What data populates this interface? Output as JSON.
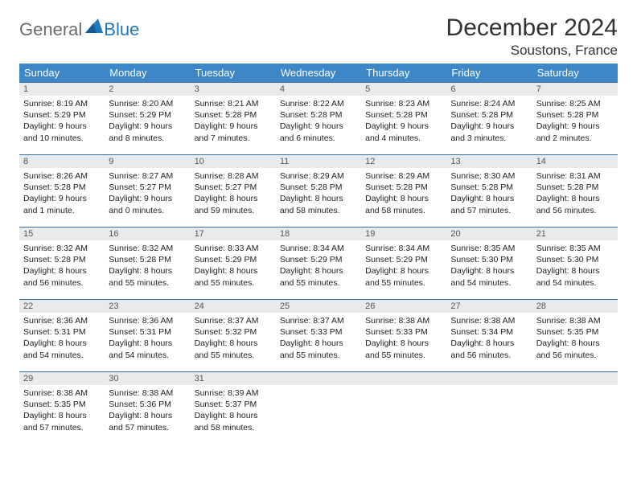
{
  "brand": {
    "word1": "General",
    "word2": "Blue"
  },
  "title": "December 2024",
  "location": "Soustons, France",
  "colors": {
    "header_bg": "#3d87c8",
    "header_text": "#ffffff",
    "row_border": "#3d6f9e",
    "daynum_bg": "#e9eaeb",
    "logo_gray": "#6b6b6b",
    "logo_blue": "#2178bd"
  },
  "weekdays": [
    "Sunday",
    "Monday",
    "Tuesday",
    "Wednesday",
    "Thursday",
    "Friday",
    "Saturday"
  ],
  "weeks": [
    [
      {
        "n": 1,
        "sr": "8:19 AM",
        "ss": "5:29 PM",
        "dl": "9 hours and 10 minutes."
      },
      {
        "n": 2,
        "sr": "8:20 AM",
        "ss": "5:29 PM",
        "dl": "9 hours and 8 minutes."
      },
      {
        "n": 3,
        "sr": "8:21 AM",
        "ss": "5:28 PM",
        "dl": "9 hours and 7 minutes."
      },
      {
        "n": 4,
        "sr": "8:22 AM",
        "ss": "5:28 PM",
        "dl": "9 hours and 6 minutes."
      },
      {
        "n": 5,
        "sr": "8:23 AM",
        "ss": "5:28 PM",
        "dl": "9 hours and 4 minutes."
      },
      {
        "n": 6,
        "sr": "8:24 AM",
        "ss": "5:28 PM",
        "dl": "9 hours and 3 minutes."
      },
      {
        "n": 7,
        "sr": "8:25 AM",
        "ss": "5:28 PM",
        "dl": "9 hours and 2 minutes."
      }
    ],
    [
      {
        "n": 8,
        "sr": "8:26 AM",
        "ss": "5:28 PM",
        "dl": "9 hours and 1 minute."
      },
      {
        "n": 9,
        "sr": "8:27 AM",
        "ss": "5:27 PM",
        "dl": "9 hours and 0 minutes."
      },
      {
        "n": 10,
        "sr": "8:28 AM",
        "ss": "5:27 PM",
        "dl": "8 hours and 59 minutes."
      },
      {
        "n": 11,
        "sr": "8:29 AM",
        "ss": "5:28 PM",
        "dl": "8 hours and 58 minutes."
      },
      {
        "n": 12,
        "sr": "8:29 AM",
        "ss": "5:28 PM",
        "dl": "8 hours and 58 minutes."
      },
      {
        "n": 13,
        "sr": "8:30 AM",
        "ss": "5:28 PM",
        "dl": "8 hours and 57 minutes."
      },
      {
        "n": 14,
        "sr": "8:31 AM",
        "ss": "5:28 PM",
        "dl": "8 hours and 56 minutes."
      }
    ],
    [
      {
        "n": 15,
        "sr": "8:32 AM",
        "ss": "5:28 PM",
        "dl": "8 hours and 56 minutes."
      },
      {
        "n": 16,
        "sr": "8:32 AM",
        "ss": "5:28 PM",
        "dl": "8 hours and 55 minutes."
      },
      {
        "n": 17,
        "sr": "8:33 AM",
        "ss": "5:29 PM",
        "dl": "8 hours and 55 minutes."
      },
      {
        "n": 18,
        "sr": "8:34 AM",
        "ss": "5:29 PM",
        "dl": "8 hours and 55 minutes."
      },
      {
        "n": 19,
        "sr": "8:34 AM",
        "ss": "5:29 PM",
        "dl": "8 hours and 55 minutes."
      },
      {
        "n": 20,
        "sr": "8:35 AM",
        "ss": "5:30 PM",
        "dl": "8 hours and 54 minutes."
      },
      {
        "n": 21,
        "sr": "8:35 AM",
        "ss": "5:30 PM",
        "dl": "8 hours and 54 minutes."
      }
    ],
    [
      {
        "n": 22,
        "sr": "8:36 AM",
        "ss": "5:31 PM",
        "dl": "8 hours and 54 minutes."
      },
      {
        "n": 23,
        "sr": "8:36 AM",
        "ss": "5:31 PM",
        "dl": "8 hours and 54 minutes."
      },
      {
        "n": 24,
        "sr": "8:37 AM",
        "ss": "5:32 PM",
        "dl": "8 hours and 55 minutes."
      },
      {
        "n": 25,
        "sr": "8:37 AM",
        "ss": "5:33 PM",
        "dl": "8 hours and 55 minutes."
      },
      {
        "n": 26,
        "sr": "8:38 AM",
        "ss": "5:33 PM",
        "dl": "8 hours and 55 minutes."
      },
      {
        "n": 27,
        "sr": "8:38 AM",
        "ss": "5:34 PM",
        "dl": "8 hours and 56 minutes."
      },
      {
        "n": 28,
        "sr": "8:38 AM",
        "ss": "5:35 PM",
        "dl": "8 hours and 56 minutes."
      }
    ],
    [
      {
        "n": 29,
        "sr": "8:38 AM",
        "ss": "5:35 PM",
        "dl": "8 hours and 57 minutes."
      },
      {
        "n": 30,
        "sr": "8:38 AM",
        "ss": "5:36 PM",
        "dl": "8 hours and 57 minutes."
      },
      {
        "n": 31,
        "sr": "8:39 AM",
        "ss": "5:37 PM",
        "dl": "8 hours and 58 minutes."
      },
      {
        "empty": true
      },
      {
        "empty": true
      },
      {
        "empty": true
      },
      {
        "empty": true
      }
    ]
  ],
  "labels": {
    "sunrise": "Sunrise:",
    "sunset": "Sunset:",
    "daylight": "Daylight:"
  }
}
